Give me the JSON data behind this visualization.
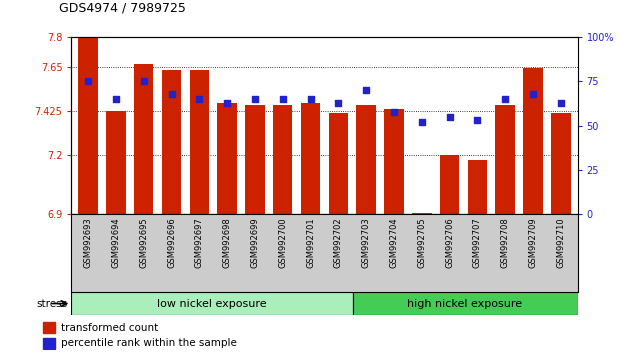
{
  "title": "GDS4974 / 7989725",
  "samples": [
    "GSM992693",
    "GSM992694",
    "GSM992695",
    "GSM992696",
    "GSM992697",
    "GSM992698",
    "GSM992699",
    "GSM992700",
    "GSM992701",
    "GSM992702",
    "GSM992703",
    "GSM992704",
    "GSM992705",
    "GSM992706",
    "GSM992707",
    "GSM992708",
    "GSM992709",
    "GSM992710"
  ],
  "transformed_count": [
    7.795,
    7.425,
    7.665,
    7.635,
    7.635,
    7.465,
    7.455,
    7.455,
    7.465,
    7.415,
    7.455,
    7.435,
    6.905,
    7.2,
    7.175,
    7.455,
    7.645,
    7.415
  ],
  "percentile_rank": [
    75,
    65,
    75,
    68,
    65,
    63,
    65,
    65,
    65,
    63,
    70,
    58,
    52,
    55,
    53,
    65,
    68,
    63
  ],
  "bar_color": "#cc2200",
  "dot_color": "#2222cc",
  "ymin": 6.9,
  "ymax": 7.8,
  "y2min": 0,
  "y2max": 100,
  "yticks": [
    6.9,
    7.2,
    7.425,
    7.65,
    7.8
  ],
  "ytick_labels": [
    "6.9",
    "7.2",
    "7.425",
    "7.65",
    "7.8"
  ],
  "y2ticks": [
    0,
    25,
    50,
    75,
    100
  ],
  "y2tick_labels": [
    "0",
    "25",
    "50",
    "75",
    "100%"
  ],
  "n_low": 10,
  "n_high": 8,
  "group_low": "low nickel exposure",
  "group_high": "high nickel exposure",
  "group_low_color": "#aaeebb",
  "group_high_color": "#44cc55",
  "stress_label": "stress",
  "legend_bar": "transformed count",
  "legend_dot": "percentile rank within the sample",
  "background_color": "#ffffff",
  "label_bg": "#cccccc",
  "bar_width": 0.7,
  "dot_size": 18
}
